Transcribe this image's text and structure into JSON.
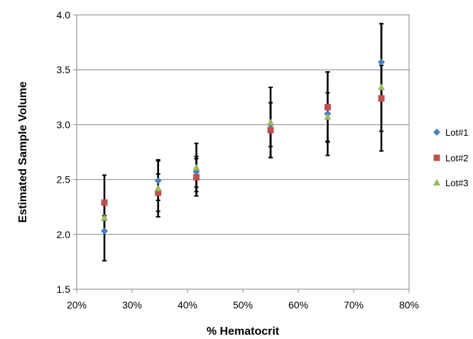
{
  "chart_data": {
    "type": "scatter",
    "title": "",
    "xlabel": "% Hematocrit",
    "ylabel": "Estimated Sample Volume",
    "xlim": [
      20,
      80
    ],
    "ylim": [
      1.5,
      4.0
    ],
    "x_ticks": [
      20,
      30,
      40,
      50,
      60,
      70,
      80
    ],
    "x_tick_labels": [
      "20%",
      "30%",
      "40%",
      "50%",
      "60%",
      "70%",
      "80%"
    ],
    "y_ticks": [
      1.5,
      2.0,
      2.5,
      3.0,
      3.5,
      4.0
    ],
    "y_tick_labels": [
      "1.5",
      "2.0",
      "2.5",
      "3.0",
      "3.5",
      "4.0"
    ],
    "grid": "horizontal",
    "legend_position": "right",
    "error_bars": true,
    "series": [
      {
        "name": "Lot#1",
        "color": "#4a7ebb",
        "marker": "diamond",
        "x": [
          25,
          34.7,
          41.6,
          55,
          65.3,
          75
        ],
        "y": [
          2.03,
          2.49,
          2.57,
          3.0,
          3.1,
          3.57
        ],
        "err": [
          0.27,
          0.18,
          0.14,
          0.2,
          0.38,
          0.35
        ]
      },
      {
        "name": "Lot#2",
        "color": "#c0504d",
        "marker": "square",
        "x": [
          25,
          34.7,
          41.6,
          55,
          65.3,
          75
        ],
        "y": [
          2.29,
          2.38,
          2.52,
          2.95,
          3.16,
          3.24
        ],
        "err": [
          0.25,
          0.17,
          0.17,
          0.25,
          0.32,
          0.3
        ]
      },
      {
        "name": "Lot#3",
        "color": "#9bbb59",
        "marker": "triangle",
        "x": [
          25,
          34.7,
          41.6,
          55,
          65.3,
          75
        ],
        "y": [
          2.15,
          2.42,
          2.61,
          3.02,
          3.07,
          3.34
        ],
        "err": [
          0.02,
          0.26,
          0.22,
          0.32,
          0.22,
          0.58
        ]
      }
    ]
  }
}
